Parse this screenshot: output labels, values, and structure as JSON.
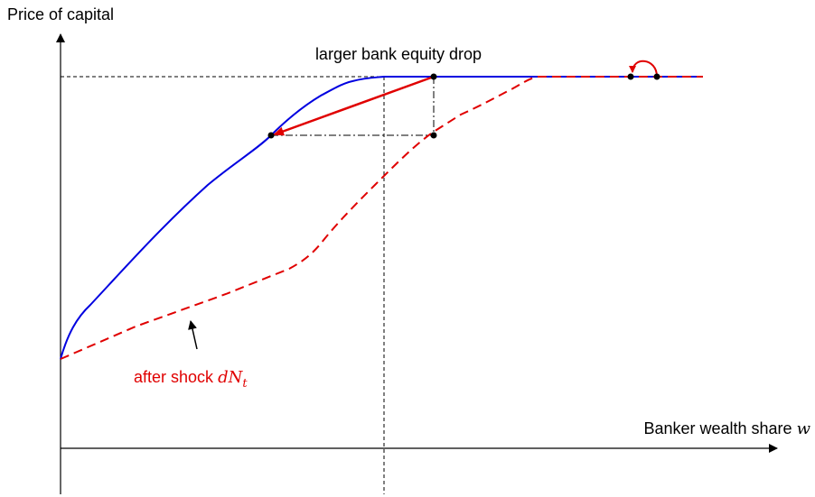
{
  "axes": {
    "y_label": "Price of capital",
    "x_label": {
      "text": "Banker wealth share",
      "variable": "w"
    }
  },
  "annotation_top": "larger bank equity drop",
  "annotation_shock": {
    "text": "after shock",
    "variable": "dN",
    "subscript": "t"
  }
}
